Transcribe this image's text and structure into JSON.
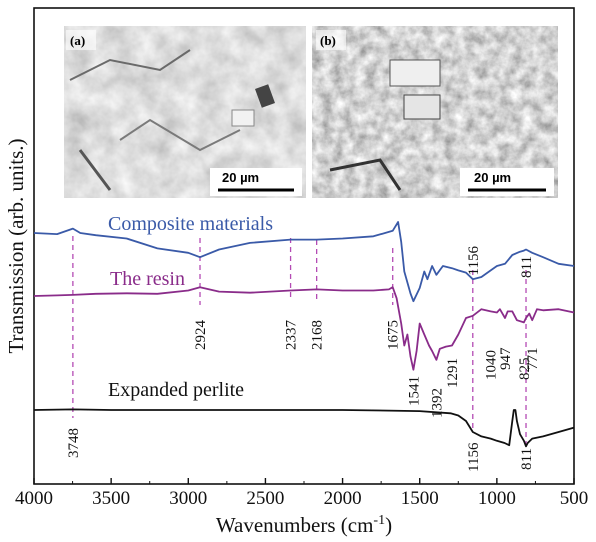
{
  "chart_data": {
    "type": "line",
    "xlabel": "Wavenumbers (cm",
    "xlabel_sup": "-1",
    "xlabel_close": ")",
    "ylabel": "Transmission (arb. units.)",
    "xlim": [
      4000,
      500
    ],
    "x_reversed": true,
    "x_ticks": [
      4000,
      3500,
      3000,
      2500,
      2000,
      1500,
      1000,
      500
    ],
    "y_ticks_shown": false,
    "series": [
      {
        "name": "Composite materials",
        "color": "#3a5aa8",
        "offset": 0.82,
        "points": [
          [
            4000,
            0.0
          ],
          [
            3850,
            0.01
          ],
          [
            3748,
            -0.04
          ],
          [
            3700,
            0.0
          ],
          [
            3600,
            0.02
          ],
          [
            3400,
            0.05
          ],
          [
            3200,
            0.14
          ],
          [
            3000,
            0.18
          ],
          [
            2924,
            0.22
          ],
          [
            2800,
            0.15
          ],
          [
            2600,
            0.09
          ],
          [
            2337,
            0.06
          ],
          [
            2168,
            0.06
          ],
          [
            2000,
            0.05
          ],
          [
            1800,
            0.03
          ],
          [
            1675,
            -0.02
          ],
          [
            1640,
            -0.1
          ],
          [
            1620,
            0.08
          ],
          [
            1600,
            0.35
          ],
          [
            1560,
            0.55
          ],
          [
            1541,
            0.62
          ],
          [
            1500,
            0.5
          ],
          [
            1470,
            0.35
          ],
          [
            1450,
            0.42
          ],
          [
            1420,
            0.3
          ],
          [
            1392,
            0.38
          ],
          [
            1350,
            0.3
          ],
          [
            1291,
            0.32
          ],
          [
            1250,
            0.34
          ],
          [
            1200,
            0.36
          ],
          [
            1156,
            0.42
          ],
          [
            1100,
            0.4
          ],
          [
            1040,
            0.34
          ],
          [
            1000,
            0.3
          ],
          [
            947,
            0.28
          ],
          [
            900,
            0.2
          ],
          [
            850,
            0.17
          ],
          [
            825,
            0.16
          ],
          [
            811,
            0.15
          ],
          [
            771,
            0.18
          ],
          [
            700,
            0.22
          ],
          [
            600,
            0.28
          ],
          [
            500,
            0.3
          ]
        ]
      },
      {
        "name": "The resin",
        "color": "#8a2c8a",
        "offset": 0.56,
        "points": [
          [
            4000,
            0.0
          ],
          [
            3850,
            -0.005
          ],
          [
            3748,
            -0.01
          ],
          [
            3600,
            -0.02
          ],
          [
            3400,
            -0.025
          ],
          [
            3200,
            -0.02
          ],
          [
            3000,
            -0.05
          ],
          [
            2924,
            -0.08
          ],
          [
            2800,
            -0.04
          ],
          [
            2600,
            -0.03
          ],
          [
            2337,
            -0.05
          ],
          [
            2168,
            -0.06
          ],
          [
            2000,
            -0.05
          ],
          [
            1800,
            -0.05
          ],
          [
            1700,
            -0.06
          ],
          [
            1675,
            -0.08
          ],
          [
            1650,
            0.02
          ],
          [
            1620,
            0.25
          ],
          [
            1600,
            0.45
          ],
          [
            1580,
            0.35
          ],
          [
            1560,
            0.55
          ],
          [
            1541,
            0.67
          ],
          [
            1520,
            0.5
          ],
          [
            1500,
            0.25
          ],
          [
            1470,
            0.35
          ],
          [
            1440,
            0.45
          ],
          [
            1420,
            0.5
          ],
          [
            1392,
            0.58
          ],
          [
            1370,
            0.48
          ],
          [
            1330,
            0.46
          ],
          [
            1291,
            0.45
          ],
          [
            1250,
            0.35
          ],
          [
            1200,
            0.2
          ],
          [
            1156,
            0.18
          ],
          [
            1100,
            0.12
          ],
          [
            1040,
            0.14
          ],
          [
            1000,
            0.15
          ],
          [
            980,
            0.12
          ],
          [
            947,
            0.2
          ],
          [
            930,
            0.14
          ],
          [
            900,
            0.14
          ],
          [
            870,
            0.22
          ],
          [
            825,
            0.24
          ],
          [
            811,
            0.2
          ],
          [
            790,
            0.16
          ],
          [
            771,
            0.22
          ],
          [
            740,
            0.12
          ],
          [
            700,
            0.13
          ],
          [
            600,
            0.12
          ],
          [
            500,
            0.15
          ]
        ]
      },
      {
        "name": "Expanded perlite",
        "color": "#111111",
        "offset": 0.0,
        "points": [
          [
            4000,
            0.0
          ],
          [
            3748,
            -0.005
          ],
          [
            3500,
            0.0
          ],
          [
            3000,
            0.0
          ],
          [
            2500,
            0.0
          ],
          [
            2000,
            0.0
          ],
          [
            1700,
            0.005
          ],
          [
            1500,
            0.01
          ],
          [
            1300,
            0.03
          ],
          [
            1250,
            0.05
          ],
          [
            1200,
            0.1
          ],
          [
            1156,
            0.2
          ],
          [
            1100,
            0.24
          ],
          [
            1040,
            0.26
          ],
          [
            1000,
            0.28
          ],
          [
            950,
            0.3
          ],
          [
            920,
            0.32
          ],
          [
            900,
            0.1
          ],
          [
            890,
            0.0
          ],
          [
            880,
            0.0
          ],
          [
            870,
            0.1
          ],
          [
            850,
            0.22
          ],
          [
            825,
            0.28
          ],
          [
            811,
            0.33
          ],
          [
            800,
            0.3
          ],
          [
            771,
            0.26
          ],
          [
            700,
            0.24
          ],
          [
            600,
            0.2
          ],
          [
            500,
            0.16
          ]
        ]
      }
    ],
    "annotations": {
      "composite_peaks": [
        "1156",
        "811"
      ],
      "resin_peaks": [
        "2924",
        "2337",
        "2168",
        "1675",
        "1541",
        "1392",
        "1291",
        "1040",
        "947",
        "825",
        "771"
      ],
      "perlite_peaks": [
        "3748",
        "1156",
        "811"
      ]
    },
    "insets": [
      {
        "label": "(a)",
        "scale_bar": "20 µm"
      },
      {
        "label": "(b)",
        "scale_bar": "20 µm"
      }
    ]
  }
}
